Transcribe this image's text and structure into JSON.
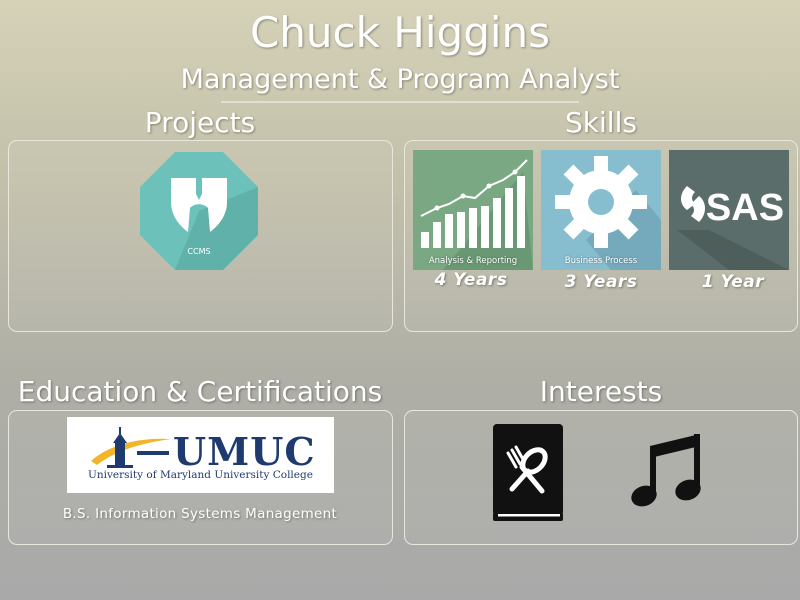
{
  "header": {
    "name": "Chuck Higgins",
    "role": "Management & Program Analyst"
  },
  "projects": {
    "heading": "Projects",
    "badge_label": "CCMS",
    "badge_color": "#6cc2bb"
  },
  "skills": {
    "heading": "Skills",
    "items": [
      {
        "label": "Analysis & Reporting",
        "years": "4 Years",
        "tile_color": "#79a883"
      },
      {
        "label": "Business Process",
        "years": "3 Years",
        "tile_color": "#86bdcf"
      },
      {
        "label": "SAS",
        "years": "1 Year",
        "tile_color": "#5b6d6b"
      }
    ]
  },
  "education": {
    "heading": "Education & Certifications",
    "logo_word": "UMUC",
    "logo_subtitle": "University of Maryland University College",
    "degree": "B.S. Information Systems Management",
    "brand_color": "#1f3a6e"
  },
  "interests": {
    "heading": "Interests",
    "items": [
      {
        "icon": "cookbook-icon"
      },
      {
        "icon": "music-note-icon"
      }
    ]
  }
}
